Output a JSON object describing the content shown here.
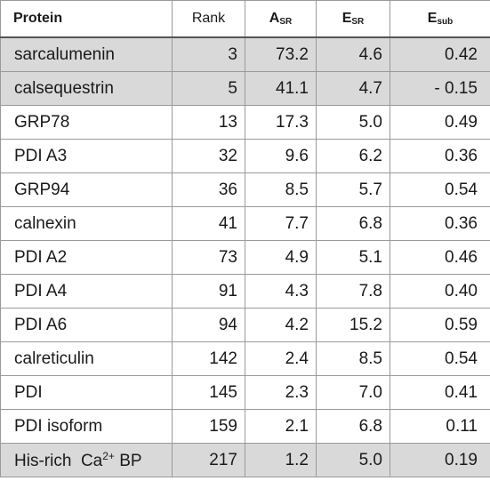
{
  "columns": {
    "protein": "Protein",
    "rank": "Rank",
    "asr_main": "A",
    "asr_sub": "SR",
    "esr_main": "E",
    "esr_sub": "SR",
    "esub_main": "E",
    "esub_sub": "sub"
  },
  "rows": [
    {
      "protein": "sarcalumenin",
      "rank": "3",
      "asr": "73.2",
      "esr": "4.6",
      "esub": "0.42",
      "shaded": true
    },
    {
      "protein": "calsequestrin",
      "rank": "5",
      "asr": "41.1",
      "esr": "4.7",
      "esub": "- 0.15",
      "shaded": true
    },
    {
      "protein": "GRP78",
      "rank": "13",
      "asr": "17.3",
      "esr": "5.0",
      "esub": "0.49",
      "shaded": false
    },
    {
      "protein": "PDI A3",
      "rank": "32",
      "asr": "9.6",
      "esr": "6.2",
      "esub": "0.36",
      "shaded": false
    },
    {
      "protein": "GRP94",
      "rank": "36",
      "asr": "8.5",
      "esr": "5.7",
      "esub": "0.54",
      "shaded": false
    },
    {
      "protein": "calnexin",
      "rank": "41",
      "asr": "7.7",
      "esr": "6.8",
      "esub": "0.36",
      "shaded": false
    },
    {
      "protein": "PDI A2",
      "rank": "73",
      "asr": "4.9",
      "esr": "5.1",
      "esub": "0.46",
      "shaded": false
    },
    {
      "protein": "PDI A4",
      "rank": "91",
      "asr": "4.3",
      "esr": "7.8",
      "esub": "0.40",
      "shaded": false
    },
    {
      "protein": "PDI A6",
      "rank": "94",
      "asr": "4.2",
      "esr": "15.2",
      "esub": "0.59",
      "shaded": false
    },
    {
      "protein": "calreticulin",
      "rank": "142",
      "asr": "2.4",
      "esr": "8.5",
      "esub": "0.54",
      "shaded": false
    },
    {
      "protein": "PDI",
      "rank": "145",
      "asr": "2.3",
      "esr": "7.0",
      "esub": "0.41",
      "shaded": false
    },
    {
      "protein": "PDI isoform",
      "rank": "159",
      "asr": "2.1",
      "esr": "6.8",
      "esub": "0.11",
      "shaded": false
    },
    {
      "protein": "His-rich  Ca",
      "protein_sup": "2+",
      "protein_suffix": " BP",
      "rank": "217",
      "asr": "1.2",
      "esr": "5.0",
      "esub": "0.19",
      "shaded": true
    }
  ]
}
